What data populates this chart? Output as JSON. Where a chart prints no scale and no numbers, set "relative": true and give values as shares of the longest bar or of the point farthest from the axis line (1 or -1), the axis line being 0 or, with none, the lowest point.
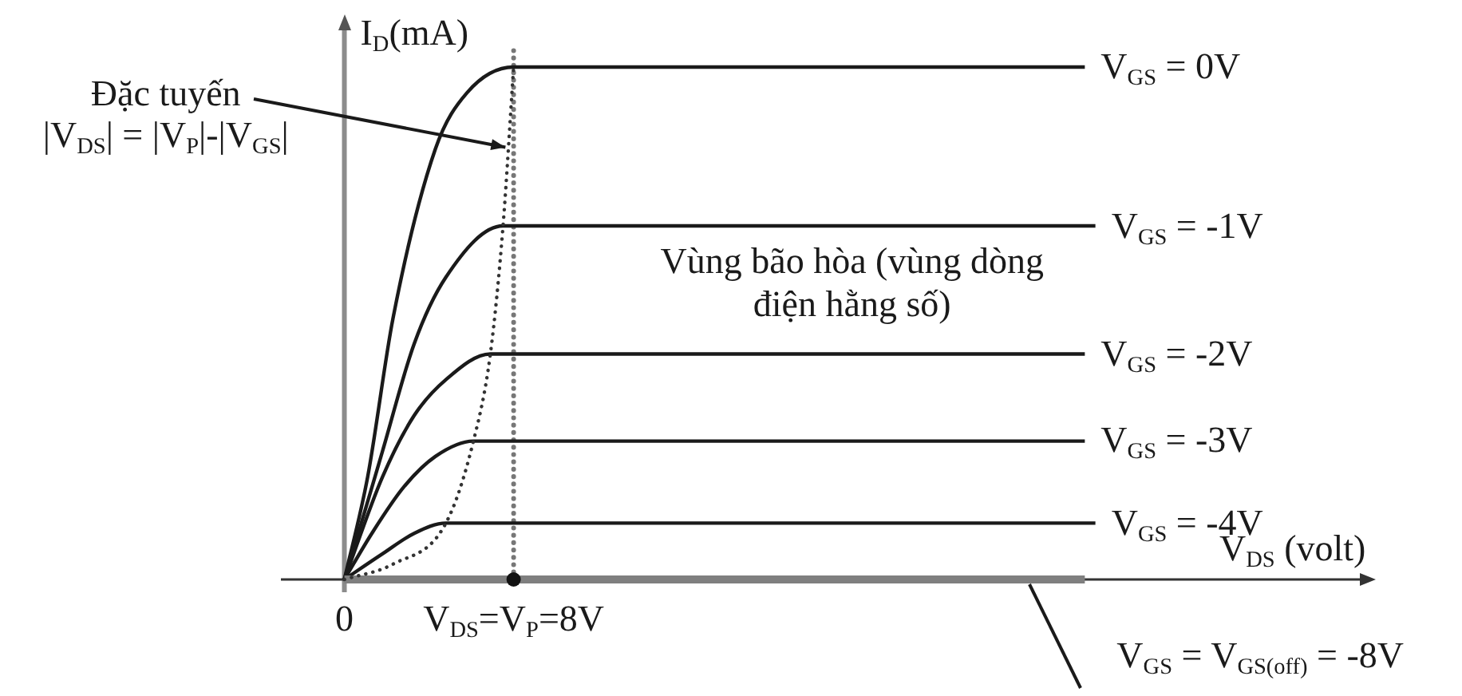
{
  "chart_data": {
    "type": "line",
    "xlabel": "V$_{DS}$ (volt)",
    "ylabel": "I$_{D}$(mA)",
    "relative": true,
    "xlim": [
      -3,
      48
    ],
    "xticks": [
      0,
      {
        "value": 8,
        "label": "V$_{DS}$=V$_{P}$=8V"
      }
    ],
    "series": [
      {
        "name": "V$_{GS}$ = 0V",
        "color": "#1a1a1a",
        "x": [
          0,
          1.1,
          2.3,
          4.3,
          5.8,
          8,
          35
        ],
        "values": [
          0,
          0.2,
          0.51,
          0.84,
          0.95,
          1,
          1
        ]
      },
      {
        "name": "V$_{GS}$ = -1V",
        "color": "#1a1a1a",
        "x": [
          0,
          0.8,
          1.8,
          3.3,
          4.8,
          7.5,
          35.5
        ],
        "values": [
          0,
          0.11,
          0.25,
          0.46,
          0.59,
          0.69,
          0.69
        ]
      },
      {
        "name": "V$_{GS}$ = -2V",
        "color": "#1a1a1a",
        "x": [
          0,
          1.8,
          3.3,
          4.8,
          6.9,
          35
        ],
        "values": [
          0,
          0.2,
          0.32,
          0.39,
          0.44,
          0.44
        ]
      },
      {
        "name": "V$_{GS}$ = -3V",
        "color": "#1a1a1a",
        "x": [
          0,
          1.3,
          2.8,
          4.3,
          6.1,
          35
        ],
        "values": [
          0,
          0.09,
          0.18,
          0.24,
          0.27,
          0.27
        ]
      },
      {
        "name": "V$_{GS}$ = -4V",
        "color": "#1a1a1a",
        "x": [
          0,
          1.8,
          3.3,
          4.8,
          35.5
        ],
        "values": [
          0,
          0.05,
          0.09,
          0.11,
          0.11
        ]
      },
      {
        "name": "V$_{GS}$ = V$_{GS(off)}$ = -8V",
        "color": "#7f7f7f",
        "x": [
          0,
          35
        ],
        "values": [
          0,
          0
        ]
      },
      {
        "name": "Đặc tuyến\n|V$_{DS}$| = |V$_{P}$|-|V$_{GS}$|",
        "color": "#333333",
        "line_style": "dotted",
        "x": [
          0,
          2.3,
          4.8,
          6.1,
          6.9,
          7.5,
          8
        ],
        "values": [
          0,
          0.03,
          0.11,
          0.27,
          0.44,
          0.69,
          1
        ]
      },
      {
        "type": "scatter",
        "marker": "circle",
        "color": "#111111",
        "x": [
          8
        ],
        "values": [
          0
        ]
      }
    ],
    "ref_lines": [
      {
        "axis": "x",
        "value": 8,
        "color": "#777777",
        "line_style": "dotted"
      }
    ],
    "annotations": [
      "Vùng bão hòa (vùng dòng\nđiện hằng số)"
    ]
  }
}
